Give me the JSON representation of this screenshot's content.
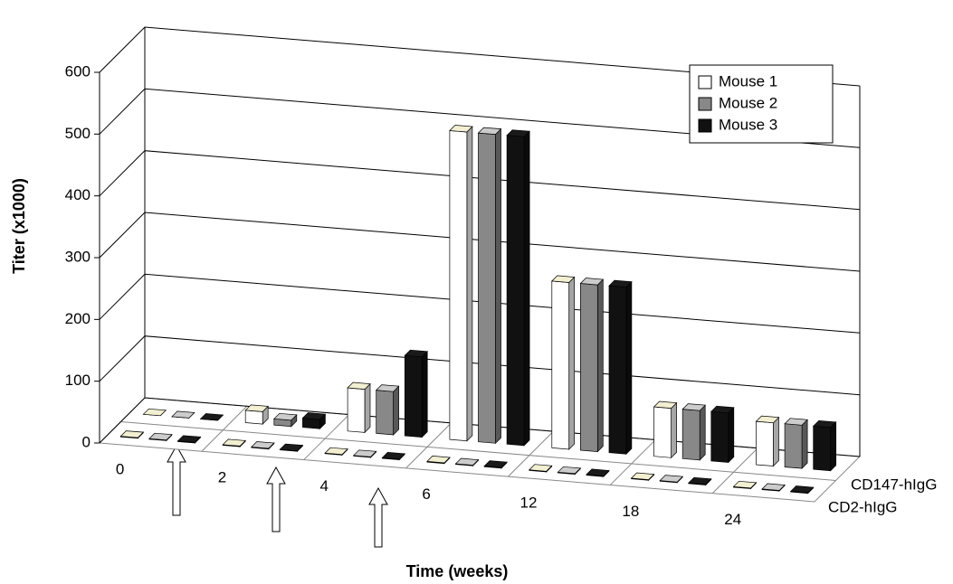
{
  "chart_data": {
    "type": "bar3d",
    "y_label": "Titer (x1000)",
    "x_label": "Time (weeks)",
    "categories": [
      "0",
      "2",
      "4",
      "6",
      "12",
      "18",
      "24"
    ],
    "rows": [
      "CD147-hIgG",
      "CD2-hIgG"
    ],
    "series": [
      {
        "name": "Mouse 1",
        "color": "#ffffff",
        "values": [
          [
            0,
            20,
            70,
            500,
            270,
            80,
            70
          ],
          [
            1,
            1,
            1,
            1,
            1,
            1,
            1
          ]
        ]
      },
      {
        "name": "Mouse 2",
        "color": "#888888",
        "values": [
          [
            0,
            10,
            70,
            500,
            270,
            80,
            70
          ],
          [
            1,
            1,
            1,
            1,
            1,
            1,
            1
          ]
        ]
      },
      {
        "name": "Mouse 3",
        "color": "#111111",
        "values": [
          [
            0,
            15,
            130,
            500,
            270,
            80,
            70
          ],
          [
            1,
            1,
            1,
            1,
            1,
            1,
            1
          ]
        ]
      }
    ],
    "ylim": [
      0,
      600
    ],
    "yticks": [
      0,
      100,
      200,
      300,
      400,
      500,
      600
    ],
    "grid": true,
    "legend": "top-right"
  }
}
